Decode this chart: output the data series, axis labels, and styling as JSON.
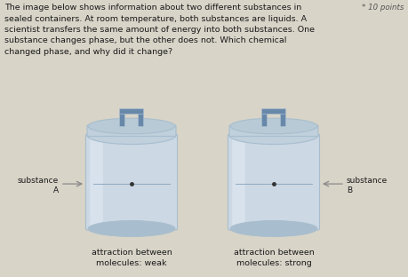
{
  "bg_color": "#d8d4c8",
  "title_text": "The image below shows information about two different substances in\nsealed containers. At room temperature, both substances are liquids. A\nscientist transfers the same amount of energy into both substances. One\nsubstance changes phase, but the other does not. Which chemical\nchanged phase, and why did it change?",
  "points_text": "* 10 points",
  "label_A": "substance\nA",
  "label_B": "substance\nB",
  "caption_A": "attraction between\nmolecules: weak",
  "caption_B": "attraction between\nmolecules: strong",
  "jar_body": "#ccd8e4",
  "jar_rim": "#a8bece",
  "jar_lid_face": "#c0d0dc",
  "jar_lid_top": "#b8cad6",
  "jar_handle": "#6888aa",
  "jar_inner_rim": "#dce8f0",
  "text_color": "#1a1a1a",
  "line_color": "#888888",
  "dot_color": "#333333",
  "points_color": "#555555"
}
